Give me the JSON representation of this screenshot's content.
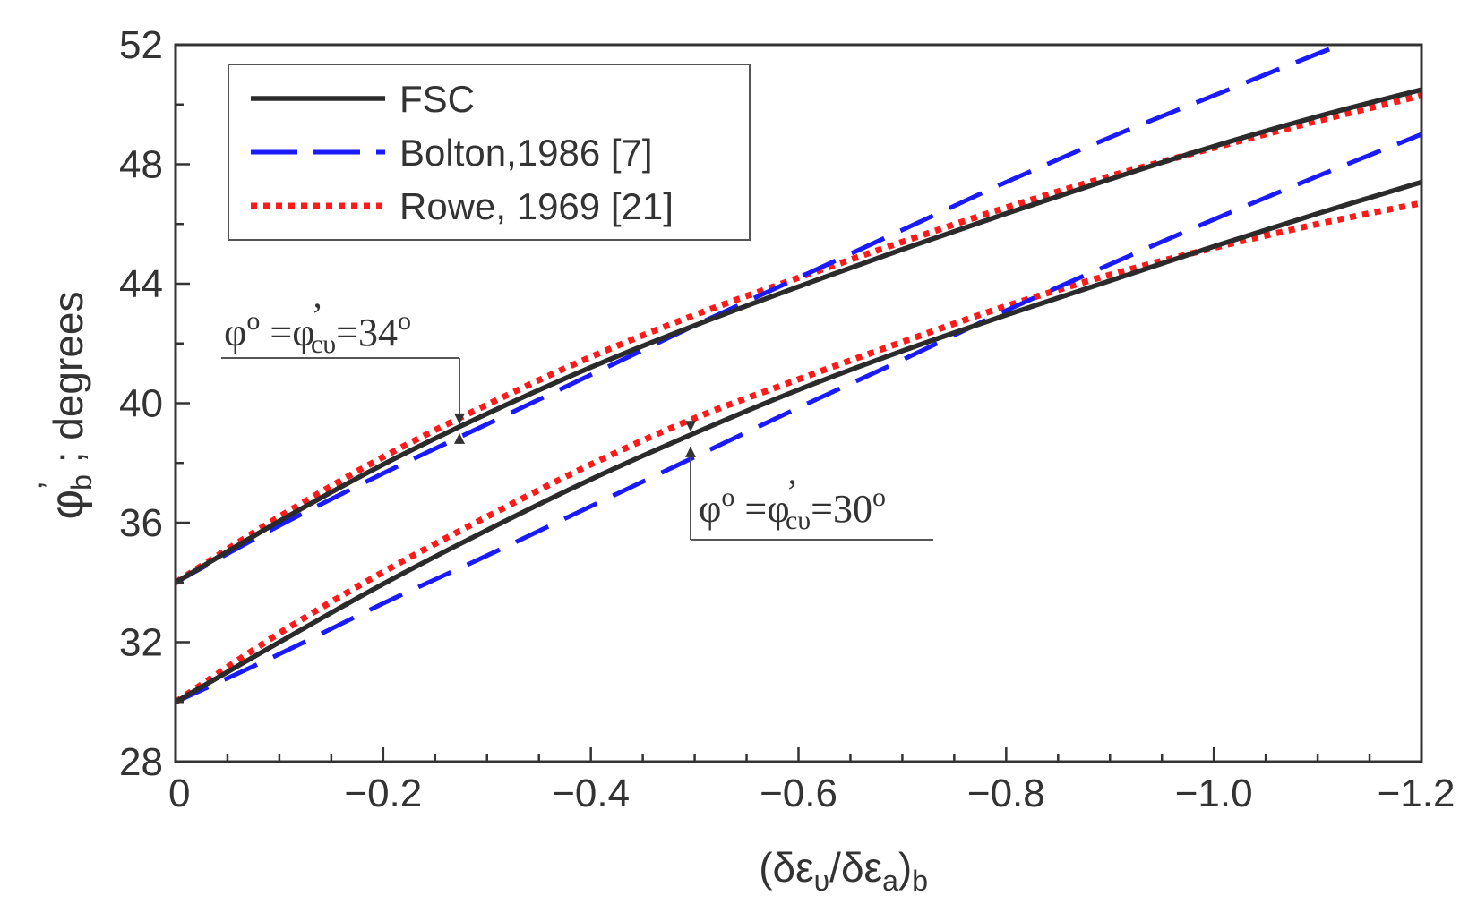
{
  "chart_data": {
    "type": "line",
    "xlabel": "(δε",
    "xlabel_sub1": "υ",
    "xlabel_mid": "/δε",
    "xlabel_sub2": "a",
    "xlabel_end": ")",
    "xlabel_sub3": "b",
    "ylabel": "φ",
    "ylabel_sup": "’",
    "ylabel_sub": "b",
    "ylabel_rest": " ; degrees",
    "xlim": [
      0,
      -1.2
    ],
    "ylim": [
      28,
      52
    ],
    "x_ticks": [
      0,
      -0.2,
      -0.4,
      -0.6,
      -0.8,
      -1.0,
      -1.2
    ],
    "x_tick_labels": [
      "0",
      "−0.2",
      "−0.4",
      "−0.6",
      "−0.8",
      "−1.0",
      "−1.2"
    ],
    "y_ticks": [
      28,
      32,
      36,
      40,
      44,
      48,
      52
    ],
    "y_tick_labels": [
      "28",
      "32",
      "36",
      "40",
      "44",
      "48",
      "52"
    ],
    "grid": false,
    "legend_position": "top-left",
    "x": [
      0,
      -0.1,
      -0.2,
      -0.3,
      -0.4,
      -0.5,
      -0.6,
      -0.7,
      -0.8,
      -0.9,
      -1.0,
      -1.1,
      -1.2
    ],
    "series": [
      {
        "name": "FSC",
        "group": "34",
        "style": "solid",
        "color": "#2b2b2b",
        "values": [
          34.0,
          36.05,
          37.95,
          39.65,
          41.2,
          42.6,
          43.9,
          45.15,
          46.35,
          47.5,
          48.6,
          49.6,
          50.5
        ]
      },
      {
        "name": "Bolton,1986 [7]",
        "group": "34",
        "style": "dashed",
        "color": "#1a1aff",
        "values": [
          34.0,
          35.9,
          37.65,
          39.3,
          40.95,
          42.6,
          44.2,
          45.8,
          47.4,
          48.9,
          50.3,
          51.7,
          53.0
        ]
      },
      {
        "name": "Rowe, 1969 [21]",
        "group": "34",
        "style": "dotted",
        "color": "#ff1a1a",
        "values": [
          34.0,
          36.2,
          38.2,
          39.95,
          41.55,
          42.95,
          44.2,
          45.4,
          46.55,
          47.6,
          48.55,
          49.45,
          50.3
        ]
      },
      {
        "name": "FSC",
        "group": "30",
        "style": "solid",
        "color": "#2b2b2b",
        "values": [
          30.0,
          32.0,
          33.95,
          35.75,
          37.45,
          39.0,
          40.45,
          41.75,
          42.95,
          44.1,
          45.25,
          46.35,
          47.4
        ]
      },
      {
        "name": "Bolton,1986 [7]",
        "group": "30",
        "style": "dashed",
        "color": "#1a1aff",
        "values": [
          30.0,
          31.6,
          33.3,
          34.9,
          36.55,
          38.2,
          39.85,
          41.45,
          43.1,
          44.65,
          46.15,
          47.6,
          49.0
        ]
      },
      {
        "name": "Rowe, 1969 [21]",
        "group": "30",
        "style": "dotted",
        "color": "#ff1a1a",
        "values": [
          30.0,
          32.3,
          34.35,
          36.2,
          37.95,
          39.5,
          40.8,
          42.05,
          43.25,
          44.3,
          45.2,
          46.0,
          46.7
        ]
      }
    ],
    "legend": [
      {
        "label": "FSC",
        "style": "solid",
        "color": "#2b2b2b"
      },
      {
        "label": "Bolton,1986 [7]",
        "style": "dashed",
        "color": "#1a1aff"
      },
      {
        "label": "Rowe, 1969 [21]",
        "style": "dotted",
        "color": "#ff1a1a"
      }
    ],
    "annotations": [
      {
        "id": "a34",
        "phi": "φ",
        "o1": "o",
        "eq1": " =φ",
        "prime": "’",
        "sub": "cυ",
        "eq2": "=34",
        "o2": "o",
        "arrow_x": -0.273,
        "arrow_y_top": 39.3,
        "arrow_y_bottom": 39.0
      },
      {
        "id": "a30",
        "phi": "φ",
        "o1": "o",
        "eq1": " =φ",
        "prime": "’",
        "sub": "cυ",
        "eq2": "=30",
        "o2": "o",
        "arrow_x": -0.495,
        "arrow_y_top": 39.05,
        "arrow_y_bottom": 38.55
      }
    ]
  }
}
